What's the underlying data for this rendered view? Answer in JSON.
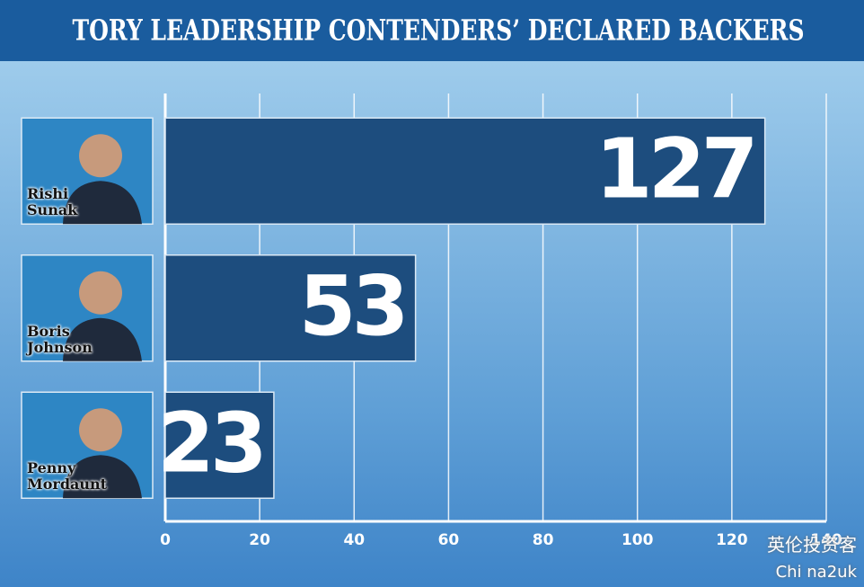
{
  "chart_data": {
    "type": "hbar",
    "title": "TORY LEADERSHIP CONTENDERS’ DECLARED BACKERS",
    "categories": [
      "Rishi Sunak",
      "Boris Johnson",
      "Penny Mordaunt"
    ],
    "values": [
      127,
      53,
      23
    ],
    "color": "#1d4d7e",
    "xlim": [
      0,
      140
    ],
    "xticks": [
      0,
      20,
      40,
      60,
      80,
      100,
      120,
      140
    ],
    "grid": true,
    "watermark": [
      "英伦投资客",
      "Chi na2uk"
    ]
  }
}
